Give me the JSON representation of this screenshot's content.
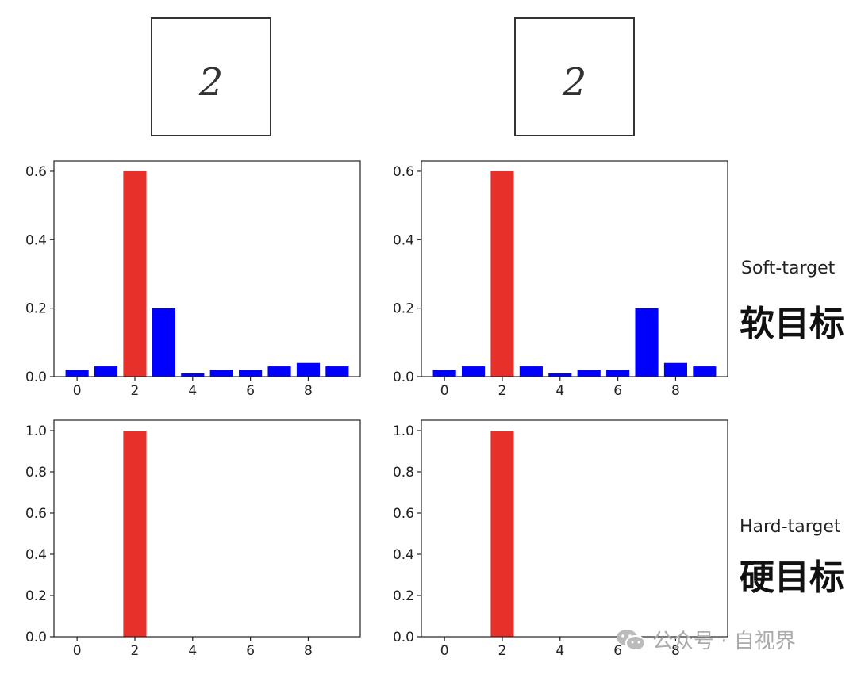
{
  "digits": [
    {
      "text": "2"
    },
    {
      "text": "2"
    }
  ],
  "side_labels": {
    "soft_en": "Soft-target",
    "soft_cn": "软目标",
    "hard_en": "Hard-target",
    "hard_cn": "硬目标"
  },
  "watermark": {
    "text": "公众号 · 自视界",
    "icon": "wechat-icon"
  },
  "colors": {
    "highlight": "#e8302a",
    "bar": "#0000ff"
  },
  "chart_data": [
    {
      "type": "bar",
      "categories": [
        0,
        1,
        2,
        3,
        4,
        5,
        6,
        7,
        8,
        9
      ],
      "values": [
        0.02,
        0.03,
        0.6,
        0.2,
        0.01,
        0.02,
        0.02,
        0.03,
        0.04,
        0.03
      ],
      "highlight_index": 2,
      "ylim": [
        0,
        0.63
      ],
      "yticks": [
        "0.0",
        "0.2",
        "0.4",
        "0.6"
      ],
      "xticks": [
        "0",
        "2",
        "4",
        "6",
        "8"
      ]
    },
    {
      "type": "bar",
      "categories": [
        0,
        1,
        2,
        3,
        4,
        5,
        6,
        7,
        8,
        9
      ],
      "values": [
        0.02,
        0.03,
        0.6,
        0.03,
        0.01,
        0.02,
        0.02,
        0.2,
        0.04,
        0.03
      ],
      "highlight_index": 2,
      "ylim": [
        0,
        0.63
      ],
      "yticks": [
        "0.0",
        "0.2",
        "0.4",
        "0.6"
      ],
      "xticks": [
        "0",
        "2",
        "4",
        "6",
        "8"
      ]
    },
    {
      "type": "bar",
      "categories": [
        0,
        1,
        2,
        3,
        4,
        5,
        6,
        7,
        8,
        9
      ],
      "values": [
        0,
        0,
        1.0,
        0,
        0,
        0,
        0,
        0,
        0,
        0
      ],
      "highlight_index": 2,
      "ylim": [
        0,
        1.05
      ],
      "yticks": [
        "0.0",
        "0.2",
        "0.4",
        "0.6",
        "0.8",
        "1.0"
      ],
      "xticks": [
        "0",
        "2",
        "4",
        "6",
        "8"
      ]
    },
    {
      "type": "bar",
      "categories": [
        0,
        1,
        2,
        3,
        4,
        5,
        6,
        7,
        8,
        9
      ],
      "values": [
        0,
        0,
        1.0,
        0,
        0,
        0,
        0,
        0,
        0,
        0
      ],
      "highlight_index": 2,
      "ylim": [
        0,
        1.05
      ],
      "yticks": [
        "0.0",
        "0.2",
        "0.4",
        "0.6",
        "0.8",
        "1.0"
      ],
      "xticks": [
        "0",
        "2",
        "4",
        "6",
        "8"
      ]
    }
  ]
}
